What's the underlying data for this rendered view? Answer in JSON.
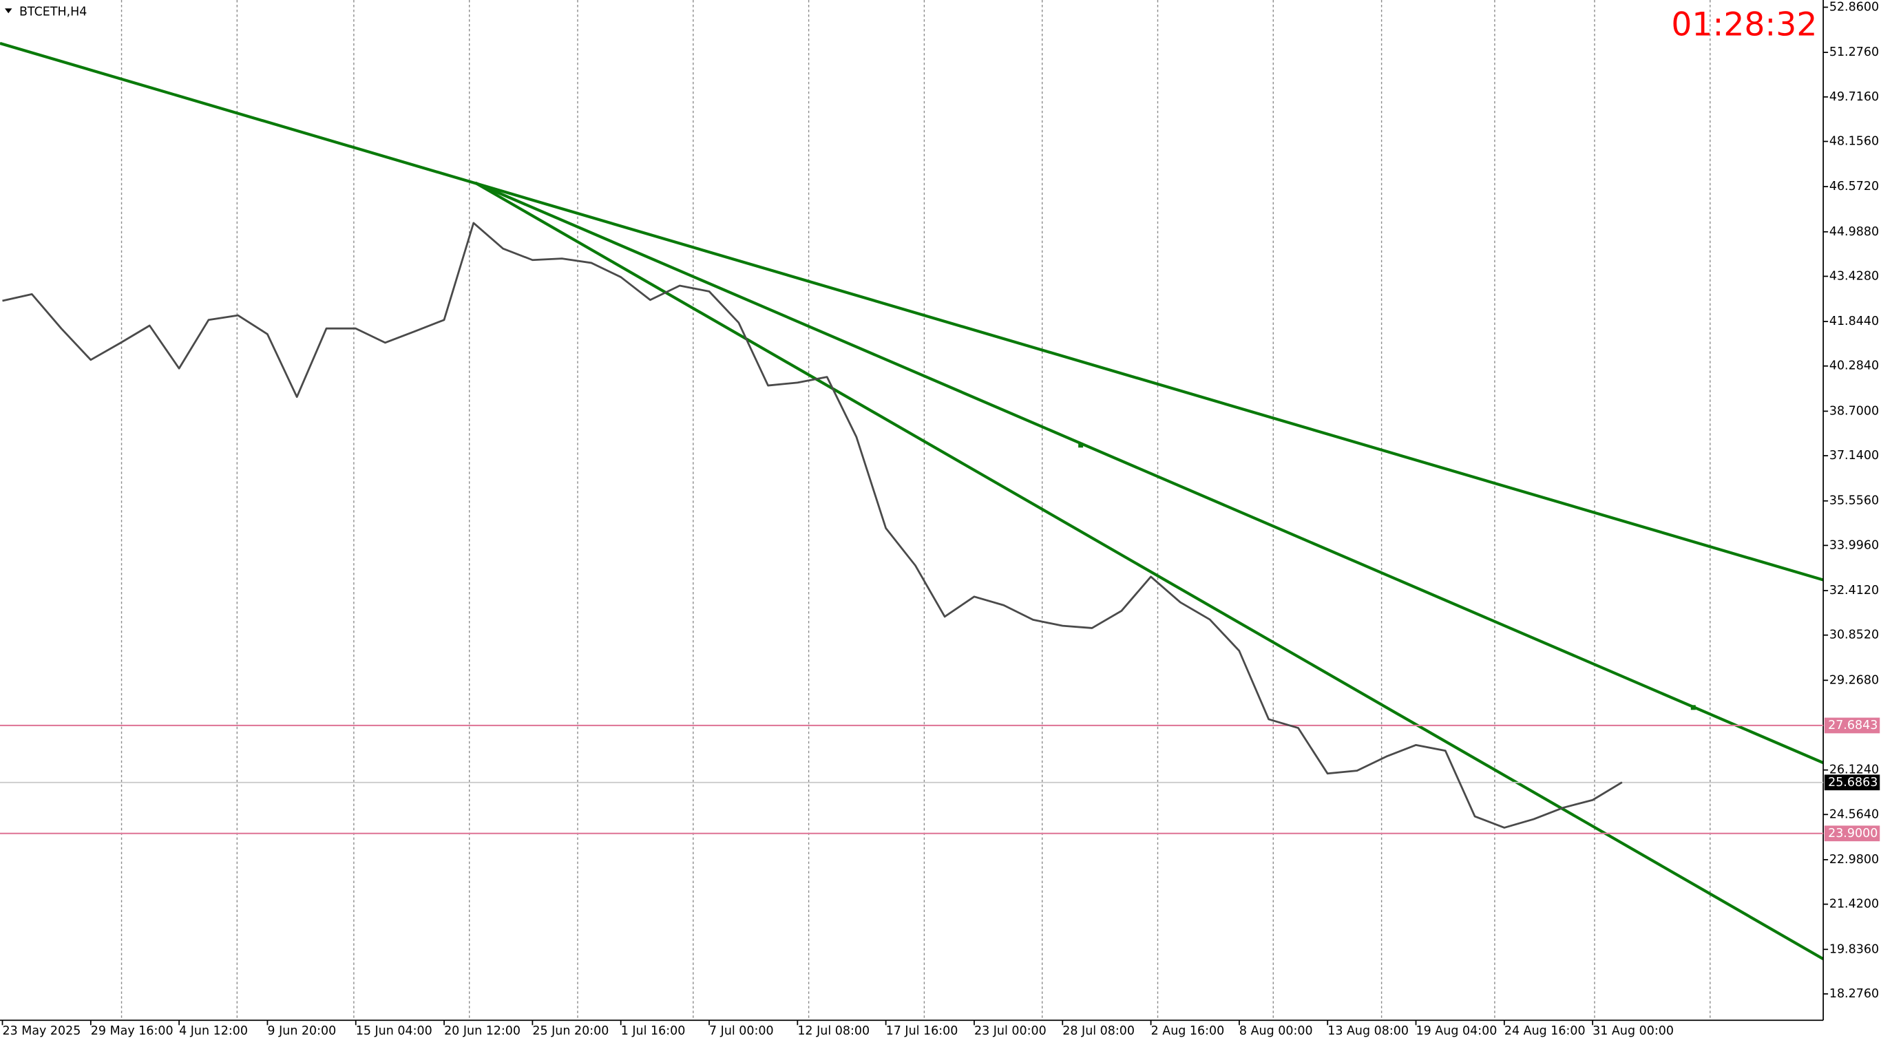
{
  "chart_data": {
    "type": "line",
    "title": "BTCETH,H4",
    "timer": "01:28:32",
    "color": "#4a4a4a",
    "categories": [
      "23 May 2025",
      null,
      null,
      "29 May 16:00",
      null,
      null,
      "4 Jun 12:00",
      null,
      null,
      "9 Jun 20:00",
      null,
      null,
      "15 Jun 04:00",
      null,
      null,
      "20 Jun 12:00",
      null,
      null,
      "25 Jun 20:00",
      null,
      null,
      "1 Jul 16:00",
      null,
      null,
      "7 Jul 00:00",
      null,
      null,
      "12 Jul 08:00",
      null,
      null,
      "17 Jul 16:00",
      null,
      null,
      "23 Jul 00:00",
      null,
      null,
      "28 Jul 08:00",
      null,
      null,
      "2 Aug 16:00",
      null,
      null,
      "8 Aug 00:00",
      null,
      null,
      "13 Aug 08:00",
      null,
      null,
      "19 Aug 04:00",
      null,
      null,
      "24 Aug 16:00",
      null,
      null,
      "31 Aug 00:00",
      null
    ],
    "values": [
      42.57,
      42.8,
      41.6,
      40.5,
      41.09,
      41.7,
      40.2,
      41.9,
      42.06,
      41.4,
      39.2,
      41.6,
      41.6,
      41.1,
      41.5,
      41.9,
      45.3,
      44.4,
      44.0,
      44.05,
      43.9,
      43.4,
      42.6,
      43.1,
      42.9,
      41.8,
      39.6,
      39.7,
      39.9,
      37.8,
      34.6,
      33.29,
      31.5,
      32.2,
      31.9,
      31.39,
      31.18,
      31.1,
      31.7,
      32.9,
      32.0,
      31.4,
      30.3,
      27.9,
      27.6,
      26.0,
      26.1,
      26.6,
      27.0,
      26.8,
      24.5,
      24.1,
      24.4,
      24.8,
      25.07,
      25.69
    ],
    "ylim": [
      17.35,
      53.113
    ],
    "yticks": [
      {
        "value": 52.86,
        "label": "52.8600"
      },
      {
        "value": 51.276,
        "label": "51.2760"
      },
      {
        "value": 49.716,
        "label": "49.7160"
      },
      {
        "value": 48.156,
        "label": "48.1560"
      },
      {
        "value": 46.572,
        "label": "46.5720"
      },
      {
        "value": 44.988,
        "label": "44.9880"
      },
      {
        "value": 43.428,
        "label": "43.4280"
      },
      {
        "value": 41.844,
        "label": "41.8440"
      },
      {
        "value": 40.284,
        "label": "40.2840"
      },
      {
        "value": 38.7,
        "label": "38.7000"
      },
      {
        "value": 37.14,
        "label": "37.1400"
      },
      {
        "value": 35.556,
        "label": "35.5560"
      },
      {
        "value": 33.996,
        "label": "33.9960"
      },
      {
        "value": 32.412,
        "label": "32.4120"
      },
      {
        "value": 30.852,
        "label": "30.8520"
      },
      {
        "value": 29.268,
        "label": "29.2680"
      },
      {
        "value": 26.124,
        "label": "26.1240"
      },
      {
        "value": 24.564,
        "label": "24.5640"
      },
      {
        "value": 22.98,
        "label": "22.9800"
      },
      {
        "value": 21.42,
        "label": "21.4200"
      },
      {
        "value": 19.836,
        "label": "19.8360"
      },
      {
        "value": 18.276,
        "label": "18.2760"
      }
    ],
    "hlines": [
      {
        "value": 27.6843,
        "label": "27.6843",
        "color": "#e07a9a"
      },
      {
        "value": 23.9,
        "label": "23.9000",
        "color": "#e07a9a"
      }
    ],
    "current_price": {
      "value": 25.6863,
      "label": "25.6863",
      "color": "#c8c8c8"
    }
  }
}
